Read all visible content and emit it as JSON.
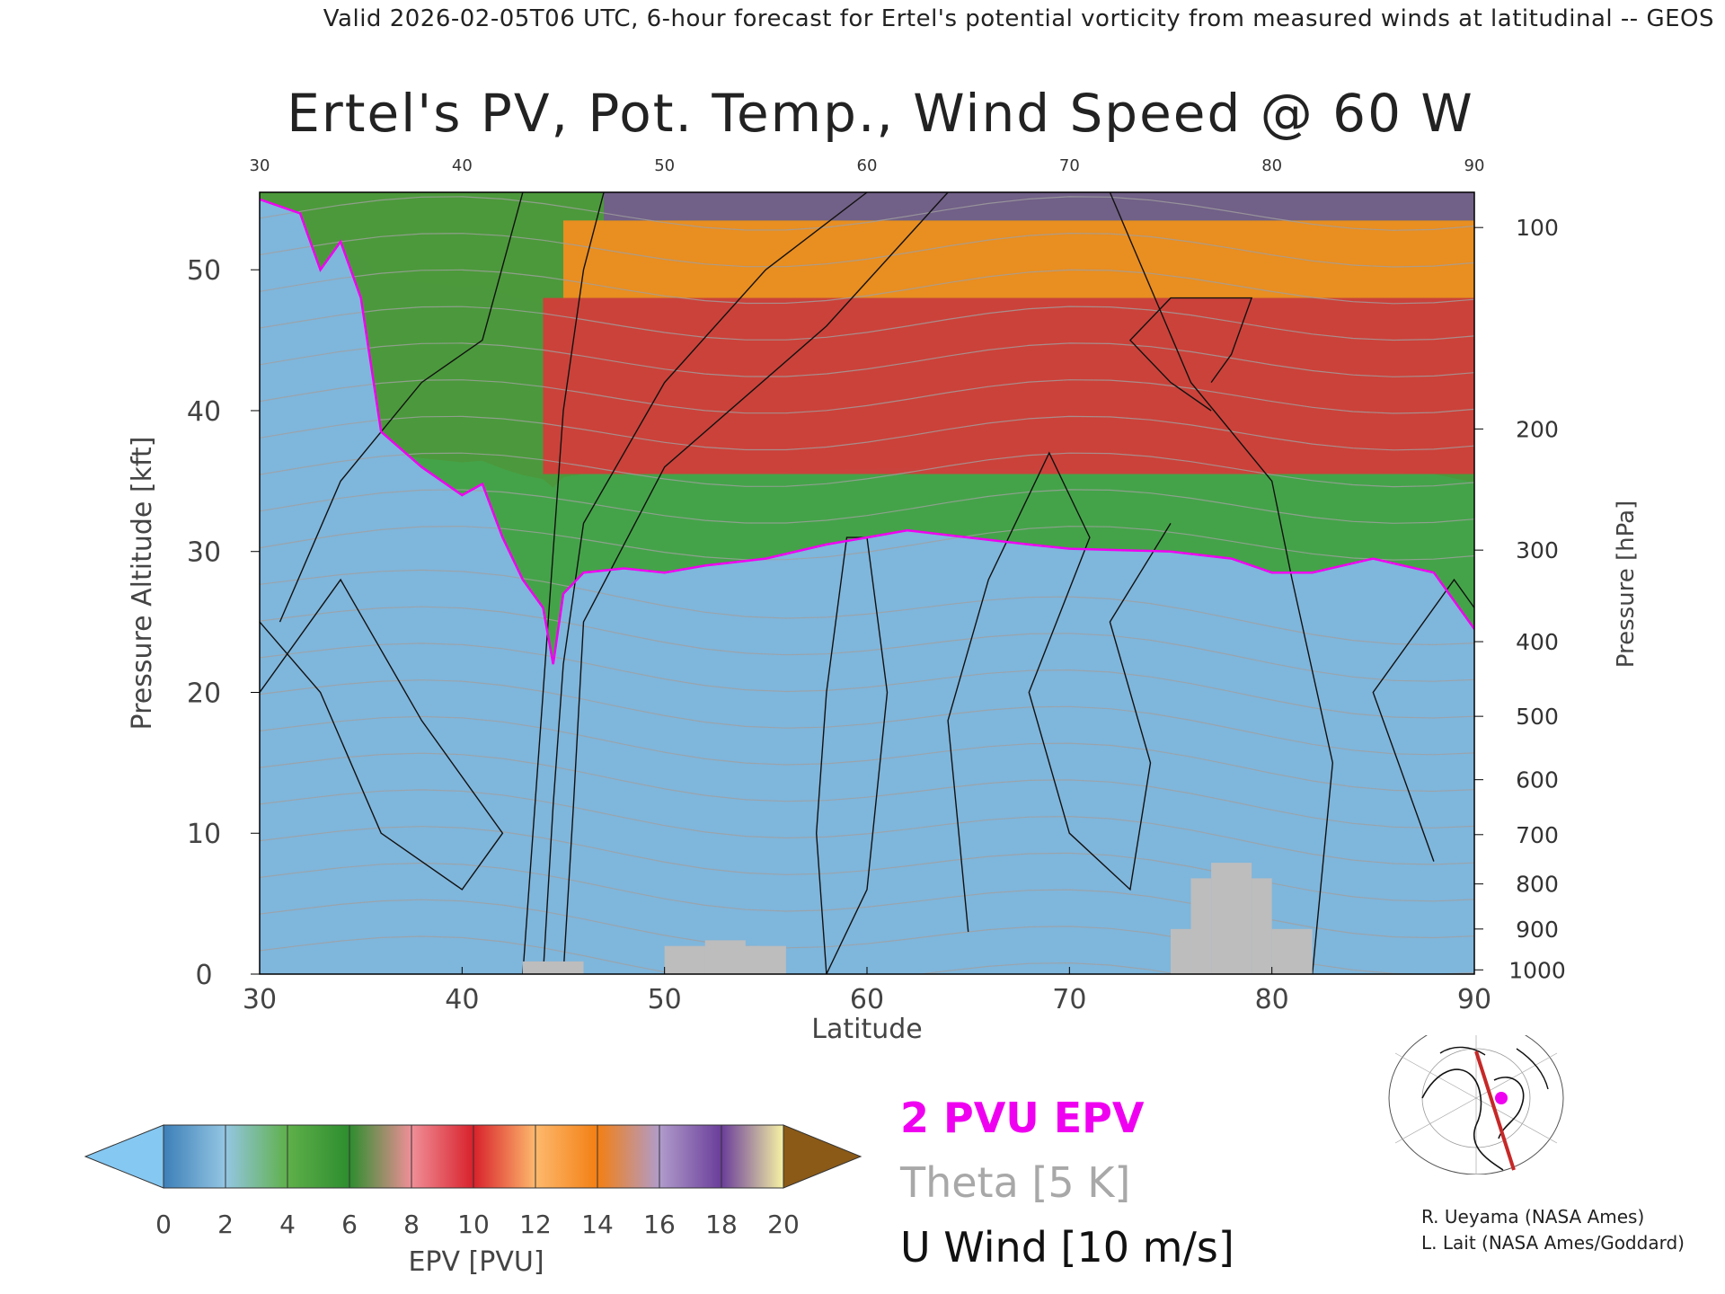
{
  "header": "Valid 2026-02-05T06 UTC, 6-hour forecast for Ertel's potential vorticity from measured winds at latitudinal -- GEOS",
  "chart_data": {
    "type": "heatmap",
    "title": "Ertel's PV, Pot. Temp., Wind Speed @ 60 W",
    "xlabel": "Latitude",
    "ylabel": "Pressure Altitude [kft]",
    "y2label": "Pressure [hPa]",
    "xlim": [
      30,
      90
    ],
    "ylim": [
      0,
      55.5
    ],
    "x_ticks": [
      30,
      40,
      50,
      60,
      70,
      80,
      90
    ],
    "y_ticks": [
      0,
      10,
      20,
      30,
      40,
      50
    ],
    "pressure_ticks": [
      {
        "hPa": "100",
        "kft": 53.0
      },
      {
        "hPa": "200",
        "kft": 38.7
      },
      {
        "hPa": "300",
        "kft": 30.1
      },
      {
        "hPa": "400",
        "kft": 23.6
      },
      {
        "hPa": "500",
        "kft": 18.3
      },
      {
        "hPa": "600",
        "kft": 13.8
      },
      {
        "hPa": "700",
        "kft": 9.9
      },
      {
        "hPa": "800",
        "kft": 6.4
      },
      {
        "hPa": "900",
        "kft": 3.2
      },
      {
        "hPa": "1000",
        "kft": 0.3
      }
    ],
    "tropopause_2pvu_kft": [
      [
        30,
        55.0
      ],
      [
        32,
        54.0
      ],
      [
        33,
        50.0
      ],
      [
        34,
        52.0
      ],
      [
        35,
        48.0
      ],
      [
        36,
        38.5
      ],
      [
        38,
        36.0
      ],
      [
        40,
        34.0
      ],
      [
        41,
        34.8
      ],
      [
        42,
        31.0
      ],
      [
        43,
        28.0
      ],
      [
        44,
        26.0
      ],
      [
        44.5,
        22.0
      ],
      [
        45,
        27.0
      ],
      [
        46,
        28.5
      ],
      [
        48,
        28.8
      ],
      [
        50,
        28.5
      ],
      [
        52,
        29.0
      ],
      [
        55,
        29.5
      ],
      [
        58,
        30.5
      ],
      [
        60,
        31.0
      ],
      [
        62,
        31.5
      ],
      [
        65,
        31.0
      ],
      [
        68,
        30.5
      ],
      [
        70,
        30.2
      ],
      [
        75,
        30.0
      ],
      [
        78,
        29.5
      ],
      [
        80,
        28.5
      ],
      [
        82,
        28.5
      ],
      [
        85,
        29.5
      ],
      [
        88,
        28.5
      ],
      [
        90,
        24.5
      ]
    ],
    "epv_bands": [
      {
        "range": "0-2",
        "top_kft": 28.5,
        "color": "#4b95c8"
      },
      {
        "range": "2-6",
        "top_kft": 35.5,
        "color": "#3fa23c"
      },
      {
        "range": "6-10",
        "top_kft": 48.0,
        "color": "#e2323a"
      },
      {
        "range": "10-14",
        "top_kft": 53.5,
        "color": "#fb8d1e"
      },
      {
        "range": "14-20",
        "top_kft": 55.5,
        "color": "#7e4ea1"
      }
    ],
    "terrain_blocks": [
      {
        "lat": [
          43,
          46
        ],
        "kft_top": 0.9
      },
      {
        "lat": [
          50,
          56
        ],
        "kft_top": 2.0
      },
      {
        "lat": [
          52,
          54
        ],
        "kft_top": 2.4
      },
      {
        "lat": [
          75,
          76
        ],
        "kft_top": 3.2
      },
      {
        "lat": [
          76,
          77
        ],
        "kft_top": 6.8
      },
      {
        "lat": [
          77,
          79
        ],
        "kft_top": 7.9
      },
      {
        "lat": [
          79,
          80
        ],
        "kft_top": 6.8
      },
      {
        "lat": [
          80,
          82
        ],
        "kft_top": 3.2
      }
    ],
    "colorbar": {
      "label": "EPV [PVU]",
      "ticks": [
        0,
        2,
        4,
        6,
        8,
        10,
        12,
        14,
        16,
        18,
        20
      ],
      "colors": [
        "#3d7fb8",
        "#94c6e3",
        "#5fb04a",
        "#2d8d2e",
        "#f08f98",
        "#d8212b",
        "#fdb96d",
        "#f37f13",
        "#b09ccb",
        "#6a3d9a",
        "#f6f2a4",
        "#c58a2a"
      ],
      "low_arrow_color": "#85c8f2",
      "high_arrow_color": "#8b5a17"
    }
  },
  "legend": {
    "epv": "2 PVU EPV",
    "theta": "Theta [5 K]",
    "wind": "U Wind [10 m/s]",
    "epv_color": "#f000f0",
    "theta_color": "#a8a8a8"
  },
  "credits": [
    "R. Ueyama (NASA Ames)",
    "L. Lait (NASA Ames/Goddard)"
  ]
}
